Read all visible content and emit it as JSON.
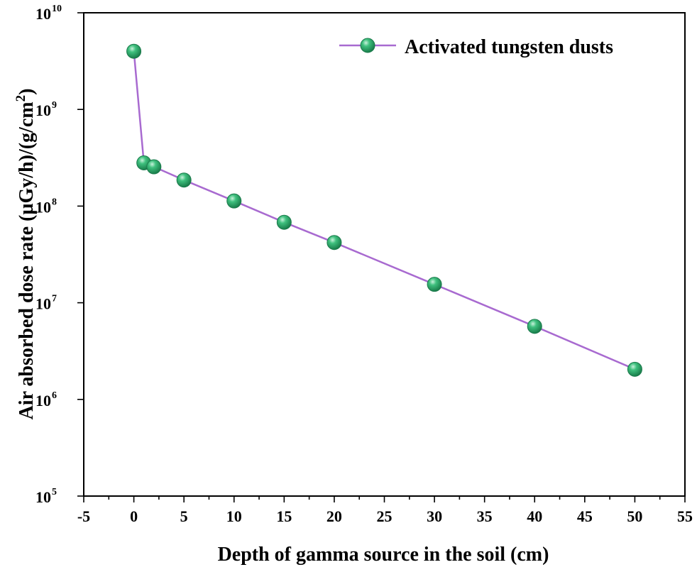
{
  "chart_data": {
    "type": "line",
    "title": "",
    "xlabel": "Depth of gamma source in the soil (cm)",
    "ylabel": {
      "prefix": "Air absorbed dose rate (µGy/h)/(g/cm",
      "sup": "2",
      "suffix": ")"
    },
    "xscale": "linear",
    "yscale": "log",
    "xlim": [
      -5,
      55
    ],
    "ylim": [
      100000,
      10000000000
    ],
    "xticks": [
      -5,
      0,
      5,
      10,
      15,
      20,
      25,
      30,
      35,
      40,
      45,
      50,
      55
    ],
    "yticks": [
      {
        "value": 100000,
        "base": "10",
        "exp": "5"
      },
      {
        "value": 1000000,
        "base": "10",
        "exp": "6"
      },
      {
        "value": 10000000,
        "base": "10",
        "exp": "7"
      },
      {
        "value": 100000000,
        "base": "10",
        "exp": "8"
      },
      {
        "value": 1000000000,
        "base": "10",
        "exp": "9"
      },
      {
        "value": 10000000000,
        "base": "10",
        "exp": "10"
      }
    ],
    "legend_position": "top-right",
    "series": [
      {
        "name": "Activated tungsten dusts",
        "line_color": "#a86ad0",
        "marker_color": "#2aa86a",
        "x": [
          0,
          1,
          2,
          5,
          10,
          15,
          20,
          30,
          40,
          50
        ],
        "y": [
          4000000000,
          280000000,
          255000000,
          186000000,
          113000000,
          68000000,
          42000000,
          15500000,
          5700000,
          2050000
        ]
      }
    ]
  }
}
